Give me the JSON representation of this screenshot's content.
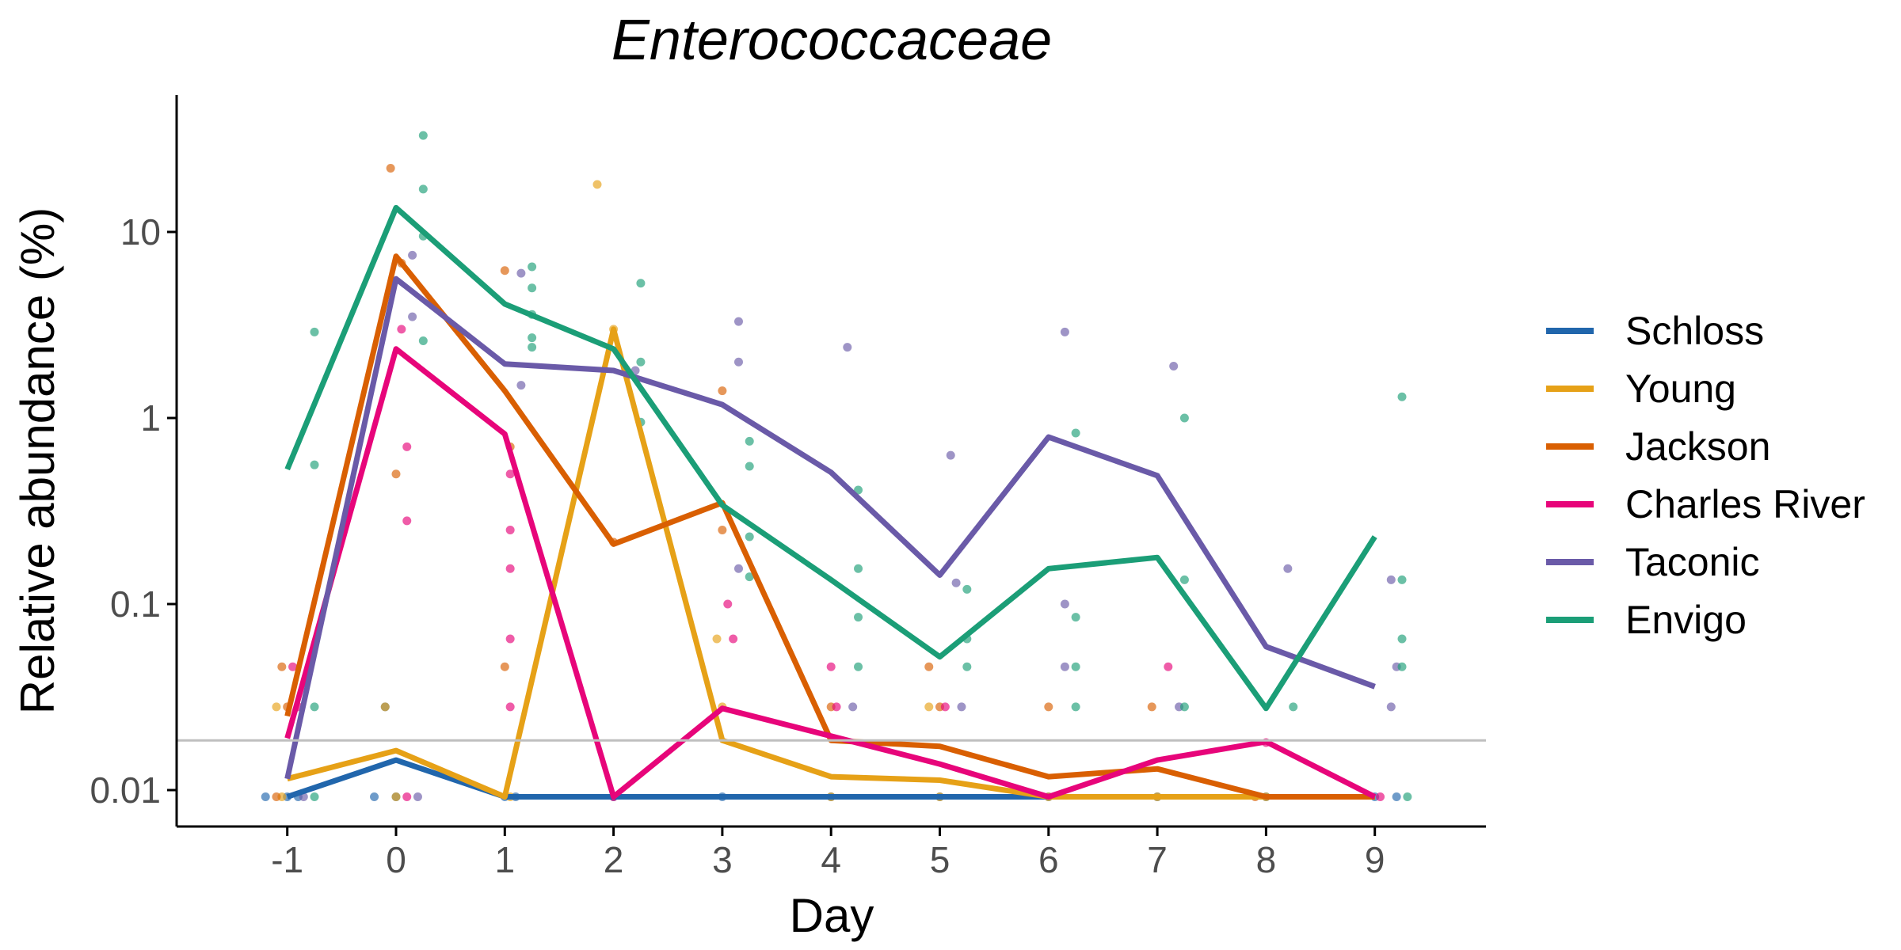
{
  "chart_data": {
    "type": "line",
    "title": "Enterococcaceae",
    "xlabel": "Day",
    "ylabel": "Relative abundance (%)",
    "x": [
      -1,
      0,
      1,
      2,
      3,
      4,
      5,
      6,
      7,
      8,
      9
    ],
    "x_tick_labels": [
      "-1",
      "0",
      "1",
      "2",
      "3",
      "4",
      "5",
      "6",
      "7",
      "8",
      "9"
    ],
    "xlim": [
      -2,
      10
    ],
    "y_scale": "log",
    "ylim": [
      0.006,
      60
    ],
    "y_ticks": [
      0.01,
      0.1,
      1,
      10
    ],
    "y_tick_labels": [
      "0.01",
      "0.1",
      "1",
      "10"
    ],
    "detection_limit": 0.0185,
    "grid": false,
    "legend_position": "right",
    "series": [
      {
        "name": "Schloss",
        "color": "#2166ac",
        "values": [
          0.0092,
          0.0145,
          0.0092,
          0.0092,
          0.0092,
          0.0092,
          0.0092,
          0.0092,
          0.0092,
          0.0092,
          0.0092
        ],
        "points": [
          [
            -1,
            0.0092
          ],
          [
            -0.9,
            0.0092
          ],
          [
            -1.2,
            0.0092
          ],
          [
            -0.2,
            0.0092
          ],
          [
            0,
            0.0092
          ],
          [
            -0.1,
            0.028
          ],
          [
            1,
            0.0092
          ],
          [
            1.1,
            0.0092
          ],
          [
            2,
            0.0092
          ],
          [
            3,
            0.0092
          ],
          [
            4,
            0.0092
          ],
          [
            5,
            0.0092
          ],
          [
            6,
            0.0092
          ],
          [
            7,
            0.0092
          ],
          [
            8,
            0.0092
          ],
          [
            9,
            0.0092
          ],
          [
            9.2,
            0.0092
          ]
        ]
      },
      {
        "name": "Young",
        "color": "#e6a117",
        "values": [
          0.0115,
          0.0163,
          0.0092,
          3.0,
          0.0185,
          0.0118,
          0.0113,
          0.0092,
          0.0092,
          0.0092,
          0.0092
        ],
        "points": [
          [
            -1.1,
            0.028
          ],
          [
            -1.05,
            0.0092
          ],
          [
            -0.1,
            0.028
          ],
          [
            0,
            0.0092
          ],
          [
            1.05,
            0.0092
          ],
          [
            1.85,
            18
          ],
          [
            2,
            3.0
          ],
          [
            2.95,
            0.065
          ],
          [
            3,
            0.028
          ],
          [
            4,
            0.0092
          ],
          [
            4.9,
            0.028
          ],
          [
            5,
            0.0092
          ],
          [
            6,
            0.0092
          ],
          [
            7,
            0.0092
          ],
          [
            8,
            0.0092
          ]
        ]
      },
      {
        "name": "Jackson",
        "color": "#d95f02",
        "values": [
          0.025,
          7.4,
          1.4,
          0.21,
          0.35,
          0.0185,
          0.0172,
          0.0118,
          0.013,
          0.0092,
          0.0092
        ],
        "points": [
          [
            -1.05,
            0.046
          ],
          [
            -1,
            0.028
          ],
          [
            -1.1,
            0.0092
          ],
          [
            -0.05,
            22
          ],
          [
            0,
            0.5
          ],
          [
            0.05,
            6.8
          ],
          [
            1,
            6.2
          ],
          [
            1.05,
            0.7
          ],
          [
            1,
            0.046
          ],
          [
            2,
            0.215
          ],
          [
            3,
            0.25
          ],
          [
            3,
            1.4
          ],
          [
            4,
            0.028
          ],
          [
            4.9,
            0.046
          ],
          [
            5,
            0.028
          ],
          [
            6,
            0.028
          ],
          [
            6.95,
            0.028
          ],
          [
            7.9,
            0.0092
          ]
        ]
      },
      {
        "name": "Charles River",
        "color": "#e7057a",
        "values": [
          0.019,
          2.35,
          0.82,
          0.0092,
          0.0275,
          0.0195,
          0.0138,
          0.0092,
          0.0145,
          0.0182,
          0.0092
        ],
        "points": [
          [
            -0.95,
            0.046
          ],
          [
            -0.9,
            0.028
          ],
          [
            0.05,
            3.0
          ],
          [
            0.1,
            0.7
          ],
          [
            0.1,
            0.28
          ],
          [
            0.1,
            0.0092
          ],
          [
            1.05,
            0.5
          ],
          [
            1.05,
            0.25
          ],
          [
            1.05,
            0.155
          ],
          [
            1.05,
            0.065
          ],
          [
            1.05,
            0.028
          ],
          [
            2,
            0.0092
          ],
          [
            3.05,
            0.1
          ],
          [
            3.1,
            0.065
          ],
          [
            4,
            0.046
          ],
          [
            4.05,
            0.028
          ],
          [
            5.05,
            0.028
          ],
          [
            7.1,
            0.046
          ],
          [
            8,
            0.018
          ],
          [
            9.05,
            0.0092
          ]
        ]
      },
      {
        "name": "Taconic",
        "color": "#6a5aa8",
        "values": [
          0.0115,
          5.6,
          1.95,
          1.8,
          1.18,
          0.51,
          0.143,
          0.79,
          0.49,
          0.059,
          0.036
        ],
        "points": [
          [
            -0.85,
            0.0092
          ],
          [
            0.15,
            7.5
          ],
          [
            0.15,
            3.5
          ],
          [
            0.2,
            0.0092
          ],
          [
            1.15,
            6.0
          ],
          [
            1.15,
            1.5
          ],
          [
            2.2,
            1.8
          ],
          [
            3.15,
            3.3
          ],
          [
            3.15,
            2.0
          ],
          [
            3.15,
            0.155
          ],
          [
            4.15,
            2.4
          ],
          [
            4.2,
            0.028
          ],
          [
            5.1,
            0.63
          ],
          [
            5.15,
            0.13
          ],
          [
            5.2,
            0.028
          ],
          [
            6.15,
            2.9
          ],
          [
            6.15,
            0.1
          ],
          [
            6.15,
            0.046
          ],
          [
            7.15,
            1.9
          ],
          [
            7.2,
            0.028
          ],
          [
            8.2,
            0.155
          ],
          [
            9.15,
            0.135
          ],
          [
            9.15,
            0.028
          ],
          [
            9.2,
            0.046
          ]
        ]
      },
      {
        "name": "Envigo",
        "color": "#1b9e77",
        "values": [
          0.53,
          13.5,
          4.1,
          2.35,
          0.34,
          0.135,
          0.052,
          0.155,
          0.178,
          0.0275,
          0.23
        ],
        "points": [
          [
            -0.75,
            2.9
          ],
          [
            -0.75,
            0.56
          ],
          [
            -0.75,
            0.028
          ],
          [
            -0.75,
            0.0092
          ],
          [
            0.25,
            33
          ],
          [
            0.25,
            17
          ],
          [
            0.25,
            9.5
          ],
          [
            0.25,
            2.6
          ],
          [
            1.25,
            6.5
          ],
          [
            1.25,
            5.0
          ],
          [
            1.25,
            3.6
          ],
          [
            1.25,
            2.7
          ],
          [
            1.25,
            2.4
          ],
          [
            2.25,
            5.3
          ],
          [
            2.25,
            2.0
          ],
          [
            2.25,
            0.95
          ],
          [
            3.25,
            0.75
          ],
          [
            3.25,
            0.55
          ],
          [
            3.25,
            0.23
          ],
          [
            3.25,
            0.14
          ],
          [
            4.25,
            0.41
          ],
          [
            4.25,
            0.155
          ],
          [
            4.25,
            0.085
          ],
          [
            4.25,
            0.046
          ],
          [
            5.25,
            0.12
          ],
          [
            5.25,
            0.065
          ],
          [
            5.25,
            0.046
          ],
          [
            6.25,
            0.83
          ],
          [
            6.25,
            0.085
          ],
          [
            6.25,
            0.046
          ],
          [
            6.25,
            0.028
          ],
          [
            7.25,
            1.0
          ],
          [
            7.25,
            0.135
          ],
          [
            7.25,
            0.028
          ],
          [
            8.25,
            0.028
          ],
          [
            9.25,
            1.3
          ],
          [
            9.25,
            0.135
          ],
          [
            9.25,
            0.065
          ],
          [
            9.25,
            0.046
          ],
          [
            9.3,
            0.0092
          ]
        ]
      }
    ]
  }
}
